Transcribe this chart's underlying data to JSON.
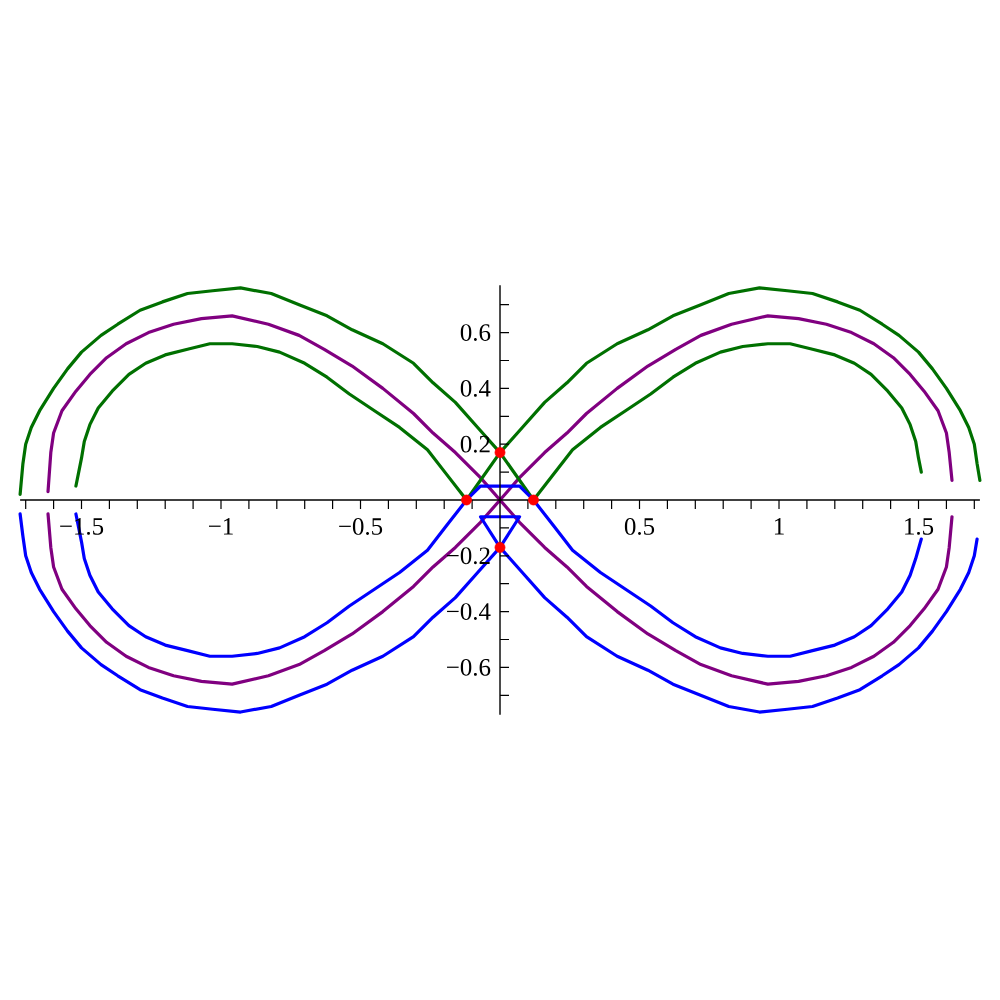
{
  "chart_data": {
    "type": "line",
    "xlim": [
      -1.72,
      1.72
    ],
    "ylim": [
      -0.77,
      0.77
    ],
    "xticks": [
      {
        "value": -1.7,
        "label": null
      },
      {
        "value": -1.6,
        "label": null
      },
      {
        "value": -1.5,
        "label": "−1.5"
      },
      {
        "value": -1.4,
        "label": null
      },
      {
        "value": -1.3,
        "label": null
      },
      {
        "value": -1.2,
        "label": null
      },
      {
        "value": -1.1,
        "label": null
      },
      {
        "value": -1,
        "label": "−1"
      },
      {
        "value": -0.9,
        "label": null
      },
      {
        "value": -0.8,
        "label": null
      },
      {
        "value": -0.7,
        "label": null
      },
      {
        "value": -0.6,
        "label": null
      },
      {
        "value": -0.5,
        "label": "−0.5"
      },
      {
        "value": -0.4,
        "label": null
      },
      {
        "value": -0.3,
        "label": null
      },
      {
        "value": -0.2,
        "label": null
      },
      {
        "value": -0.1,
        "label": null
      },
      {
        "value": 0.1,
        "label": null
      },
      {
        "value": 0.2,
        "label": null
      },
      {
        "value": 0.3,
        "label": null
      },
      {
        "value": 0.4,
        "label": null
      },
      0.5,
      {
        "value": 0.6,
        "label": null
      },
      {
        "value": 0.7,
        "label": null
      },
      {
        "value": 0.8,
        "label": null
      },
      {
        "value": 0.9,
        "label": null
      },
      1,
      {
        "value": 1.1,
        "label": null
      },
      {
        "value": 1.2,
        "label": null
      },
      {
        "value": 1.3,
        "label": null
      },
      {
        "value": 1.4,
        "label": null
      },
      1.5,
      {
        "value": 1.6,
        "label": null
      },
      {
        "value": 1.7,
        "label": null
      }
    ],
    "yticks": [
      {
        "value": -0.7,
        "label": null
      },
      {
        "value": -0.6,
        "label": "−0.6"
      },
      {
        "value": -0.5,
        "label": null
      },
      {
        "value": -0.4,
        "label": "−0.4"
      },
      {
        "value": -0.3,
        "label": null
      },
      {
        "value": -0.2,
        "label": "−0.2"
      },
      {
        "value": -0.1,
        "label": null
      },
      {
        "value": 0.1,
        "label": null
      },
      0.2,
      {
        "value": 0.3,
        "label": null
      },
      0.4,
      {
        "value": 0.5,
        "label": null
      },
      0.6,
      {
        "value": 0.7,
        "label": null
      }
    ],
    "series": [
      {
        "color": "#800080",
        "x": [
          -1.62,
          -1.61,
          -1.6,
          -1.57,
          -1.52,
          -1.47,
          -1.41,
          -1.34,
          -1.26,
          -1.17,
          -1.07,
          -0.96,
          -0.83,
          -0.72,
          -0.63,
          -0.53,
          -0.42,
          -0.31,
          -0.24,
          -0.16,
          -0.07,
          0,
          0.07,
          0.16,
          0.24,
          0.31,
          0.42,
          0.53,
          0.63,
          0.72,
          0.83,
          0.96,
          1.07,
          1.17,
          1.26,
          1.34,
          1.41,
          1.47,
          1.52,
          1.57,
          1.6,
          1.61,
          1.62
        ],
        "values": [
          0.03,
          0.17,
          0.24,
          0.32,
          0.39,
          0.45,
          0.51,
          0.56,
          0.6,
          0.63,
          0.65,
          0.66,
          0.63,
          0.59,
          0.54,
          0.48,
          0.4,
          0.31,
          0.24,
          0.17,
          0.08,
          0,
          0.08,
          0.17,
          0.24,
          0.31,
          0.4,
          0.48,
          0.54,
          0.59,
          0.63,
          0.66,
          0.65,
          0.63,
          0.6,
          0.56,
          0.51,
          0.45,
          0.39,
          0.32,
          0.24,
          0.17,
          0.07
        ]
      },
      {
        "color": "#800080",
        "x": [
          -1.62,
          -1.61,
          -1.6,
          -1.57,
          -1.52,
          -1.47,
          -1.41,
          -1.34,
          -1.26,
          -1.17,
          -1.07,
          -0.96,
          -0.83,
          -0.72,
          -0.63,
          -0.53,
          -0.42,
          -0.31,
          -0.24,
          -0.16,
          -0.07,
          0,
          0.07,
          0.16,
          0.24,
          0.31,
          0.42,
          0.53,
          0.63,
          0.72,
          0.83,
          0.96,
          1.07,
          1.17,
          1.26,
          1.34,
          1.41,
          1.47,
          1.52,
          1.57,
          1.6,
          1.61,
          1.62
        ],
        "values": [
          -0.05,
          -0.17,
          -0.24,
          -0.32,
          -0.39,
          -0.45,
          -0.51,
          -0.56,
          -0.6,
          -0.63,
          -0.65,
          -0.66,
          -0.63,
          -0.59,
          -0.54,
          -0.48,
          -0.4,
          -0.31,
          -0.24,
          -0.17,
          -0.08,
          0,
          -0.08,
          -0.17,
          -0.24,
          -0.31,
          -0.4,
          -0.48,
          -0.54,
          -0.59,
          -0.63,
          -0.66,
          -0.65,
          -0.63,
          -0.6,
          -0.56,
          -0.51,
          -0.45,
          -0.39,
          -0.32,
          -0.24,
          -0.17,
          -0.06
        ]
      },
      {
        "color": "#007000",
        "x": [
          -1.72,
          -1.71,
          -1.7,
          -1.68,
          -1.65,
          -1.6,
          -1.55,
          -1.5,
          -1.43,
          -1.37,
          -1.29,
          -1.21,
          -1.12,
          -1.03,
          -0.93,
          -0.82,
          -0.72,
          -0.62,
          -0.53,
          -0.42,
          -0.31,
          -0.24,
          -0.16,
          -0.08,
          0,
          0.12,
          0.19,
          0.26,
          0.36,
          0.45,
          0.54,
          0.62,
          0.7,
          0.79,
          0.87,
          0.96,
          1.04,
          1.12,
          1.2,
          1.27,
          1.33,
          1.39,
          1.44,
          1.47,
          1.49,
          1.5,
          1.51
        ],
        "values": [
          0.02,
          0.13,
          0.2,
          0.26,
          0.32,
          0.4,
          0.47,
          0.53,
          0.59,
          0.63,
          0.68,
          0.71,
          0.74,
          0.75,
          0.76,
          0.74,
          0.7,
          0.66,
          0.61,
          0.56,
          0.49,
          0.42,
          0.35,
          0.26,
          0.17,
          0,
          0.09,
          0.18,
          0.26,
          0.32,
          0.38,
          0.44,
          0.49,
          0.53,
          0.55,
          0.56,
          0.56,
          0.54,
          0.52,
          0.49,
          0.45,
          0.39,
          0.33,
          0.27,
          0.21,
          0.15,
          0.1
        ]
      },
      {
        "color": "#007000",
        "x": [
          1.72,
          1.71,
          1.7,
          1.68,
          1.65,
          1.6,
          1.55,
          1.5,
          1.43,
          1.37,
          1.29,
          1.21,
          1.12,
          1.03,
          0.93,
          0.82,
          0.72,
          0.62,
          0.53,
          0.42,
          0.31,
          0.24,
          0.16,
          0.08,
          0,
          -0.12,
          -0.19,
          -0.26,
          -0.36,
          -0.45,
          -0.54,
          -0.62,
          -0.7,
          -0.79,
          -0.87,
          -0.96,
          -1.04,
          -1.12,
          -1.2,
          -1.27,
          -1.33,
          -1.39,
          -1.44,
          -1.47,
          -1.49,
          -1.5,
          -1.51,
          -1.52
        ],
        "values": [
          0.07,
          0.13,
          0.2,
          0.26,
          0.32,
          0.4,
          0.47,
          0.53,
          0.59,
          0.63,
          0.68,
          0.71,
          0.74,
          0.75,
          0.76,
          0.74,
          0.7,
          0.66,
          0.61,
          0.56,
          0.49,
          0.42,
          0.35,
          0.26,
          0.17,
          0,
          0.09,
          0.18,
          0.26,
          0.32,
          0.38,
          0.44,
          0.49,
          0.53,
          0.55,
          0.56,
          0.56,
          0.54,
          0.52,
          0.49,
          0.45,
          0.39,
          0.33,
          0.27,
          0.21,
          0.15,
          0.1,
          0.05
        ]
      },
      {
        "color": "#0000ff",
        "x": [
          -1.52,
          -1.51,
          -1.5,
          -1.49,
          -1.47,
          -1.44,
          -1.39,
          -1.33,
          -1.27,
          -1.2,
          -1.12,
          -1.04,
          -0.96,
          -0.87,
          -0.79,
          -0.7,
          -0.62,
          -0.54,
          -0.45,
          -0.36,
          -0.26,
          -0.19,
          -0.12,
          -0.07,
          0.07,
          0.12,
          0.19,
          0.26,
          0.36,
          0.45,
          0.54,
          0.62,
          0.7,
          0.79,
          0.87,
          0.96,
          1.04,
          1.12,
          1.2,
          1.27,
          1.33,
          1.39,
          1.44,
          1.47,
          1.49,
          1.51
        ],
        "values": [
          -0.05,
          -0.1,
          -0.15,
          -0.21,
          -0.27,
          -0.33,
          -0.39,
          -0.45,
          -0.49,
          -0.52,
          -0.54,
          -0.56,
          -0.56,
          -0.55,
          -0.53,
          -0.49,
          -0.44,
          -0.38,
          -0.32,
          -0.26,
          -0.18,
          -0.09,
          0,
          0.05,
          0.05,
          0,
          -0.09,
          -0.18,
          -0.26,
          -0.32,
          -0.38,
          -0.44,
          -0.49,
          -0.53,
          -0.55,
          -0.56,
          -0.56,
          -0.54,
          -0.52,
          -0.49,
          -0.45,
          -0.39,
          -0.33,
          -0.27,
          -0.21,
          -0.14
        ]
      },
      {
        "color": "#0000ff",
        "x": [
          -1.72,
          -1.71,
          -1.7,
          -1.68,
          -1.65,
          -1.6,
          -1.55,
          -1.5,
          -1.43,
          -1.37,
          -1.29,
          -1.21,
          -1.12,
          -1.03,
          -0.93,
          -0.82,
          -0.72,
          -0.62,
          -0.53,
          -0.42,
          -0.31,
          -0.24,
          -0.16,
          -0.08,
          0,
          0.07,
          -0.07,
          0,
          0.08,
          0.16,
          0.24,
          0.31,
          0.42,
          0.53,
          0.62,
          0.72,
          0.82,
          0.93,
          1.03,
          1.12,
          1.21,
          1.29,
          1.37,
          1.43,
          1.5,
          1.55,
          1.6,
          1.65,
          1.68,
          1.7,
          1.71
        ],
        "values": [
          -0.05,
          -0.13,
          -0.2,
          -0.26,
          -0.32,
          -0.4,
          -0.47,
          -0.53,
          -0.59,
          -0.63,
          -0.68,
          -0.71,
          -0.74,
          -0.75,
          -0.76,
          -0.74,
          -0.7,
          -0.66,
          -0.61,
          -0.56,
          -0.49,
          -0.42,
          -0.35,
          -0.26,
          -0.17,
          -0.06,
          -0.06,
          -0.17,
          -0.26,
          -0.35,
          -0.42,
          -0.49,
          -0.56,
          -0.61,
          -0.66,
          -0.7,
          -0.74,
          -0.76,
          -0.75,
          -0.74,
          -0.71,
          -0.68,
          -0.63,
          -0.59,
          -0.53,
          -0.47,
          -0.4,
          -0.32,
          -0.26,
          -0.2,
          -0.14
        ]
      },
      {
        "type": "scatter",
        "color": "#ff0000",
        "marker": "circle",
        "x": [
          0,
          0,
          -0.12,
          0.12
        ],
        "values": [
          0.17,
          -0.17,
          0,
          0
        ]
      }
    ]
  }
}
